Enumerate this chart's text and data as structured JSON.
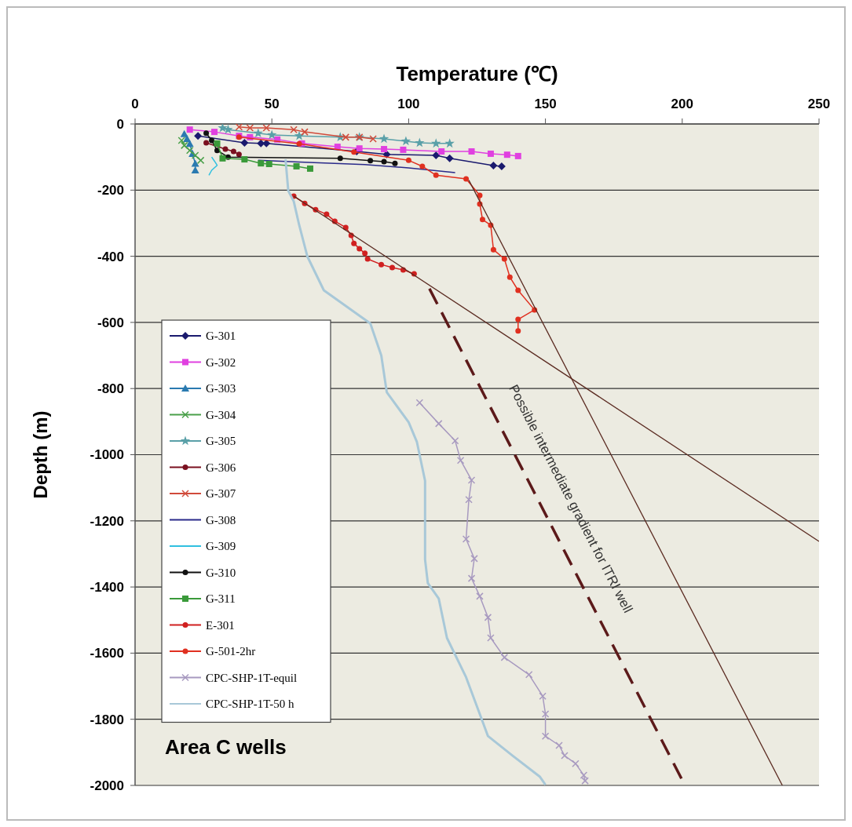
{
  "chart_data": {
    "type": "line",
    "title": "Temperature (℃)",
    "ylabel": "Depth (m)",
    "xlim": [
      0,
      250
    ],
    "xticks": [
      0,
      50,
      100,
      150,
      200,
      250
    ],
    "ylim": [
      -2000,
      0
    ],
    "yticks": [
      -2000,
      -1800,
      -1600,
      -1400,
      -1200,
      -1000,
      -800,
      -600,
      -400,
      -200,
      0
    ],
    "grid": "y",
    "legend": "left",
    "annotations": [
      "Area C wells",
      "Possible intermediate gradient for ITRI well"
    ],
    "series": [
      {
        "name": "G-301",
        "color": "#1a1a6e",
        "marker": "diamond",
        "x": [
          23,
          40,
          46,
          48,
          81,
          92,
          110,
          115,
          131,
          134
        ],
        "values": [
          -36,
          -57,
          -59,
          -59,
          -83,
          -92,
          -95,
          -104,
          -126,
          -128
        ]
      },
      {
        "name": "G-302",
        "color": "#e040e0",
        "marker": "square",
        "x": [
          20,
          29,
          38,
          42,
          52,
          61,
          74,
          82,
          91,
          98,
          112,
          123,
          130,
          136,
          140
        ],
        "values": [
          -17,
          -24,
          -36,
          -40,
          -47,
          -59,
          -69,
          -74,
          -76,
          -78,
          -83,
          -83,
          -90,
          -93,
          -97
        ]
      },
      {
        "name": "G-303",
        "color": "#2a7ab0",
        "marker": "triangle",
        "x": [
          18,
          19,
          20,
          21,
          22,
          22
        ],
        "values": [
          -30,
          -45,
          -60,
          -90,
          -120,
          -140
        ]
      },
      {
        "name": "G-304",
        "color": "#4aa04a",
        "marker": "cross",
        "x": [
          17,
          18,
          20,
          22,
          24
        ],
        "values": [
          -50,
          -65,
          -80,
          -95,
          -110
        ]
      },
      {
        "name": "G-305",
        "color": "#5aa0a8",
        "marker": "star",
        "x": [
          32,
          34,
          45,
          50,
          60,
          75,
          82,
          91,
          99,
          104,
          110,
          115
        ],
        "values": [
          -12,
          -17,
          -28,
          -33,
          -36,
          -40,
          -40,
          -45,
          -52,
          -57,
          -59,
          -59
        ]
      },
      {
        "name": "G-306",
        "color": "#7a1020",
        "marker": "circle",
        "x": [
          26,
          33,
          36,
          38
        ],
        "values": [
          -57,
          -76,
          -83,
          -92
        ]
      },
      {
        "name": "G-307",
        "color": "#d04a3a",
        "marker": "cross",
        "x": [
          38,
          42,
          48,
          58,
          62,
          77,
          82,
          87
        ],
        "values": [
          -9,
          -12,
          -12,
          -17,
          -24,
          -40,
          -40,
          -45
        ]
      },
      {
        "name": "G-308",
        "color": "#2a2a8a",
        "marker": "none",
        "x": [
          45,
          60,
          84,
          100,
          117
        ],
        "values": [
          -110,
          -115,
          -123,
          -133,
          -147
        ]
      },
      {
        "name": "G-309",
        "color": "#30c0e0",
        "marker": "none",
        "x": [
          28,
          29,
          30,
          28,
          27
        ],
        "values": [
          -100,
          -112,
          -125,
          -140,
          -155
        ]
      },
      {
        "name": "G-310",
        "color": "#111111",
        "marker": "circle",
        "x": [
          26,
          28,
          30,
          34,
          75,
          86,
          91,
          95
        ],
        "values": [
          -28,
          -50,
          -80,
          -100,
          -104,
          -111,
          -114,
          -119
        ]
      },
      {
        "name": "G-311",
        "color": "#3a9a3a",
        "marker": "square",
        "x": [
          30,
          32,
          40,
          46,
          49,
          59,
          64
        ],
        "values": [
          -59,
          -104,
          -107,
          -119,
          -121,
          -128,
          -135
        ]
      },
      {
        "name": "E-301",
        "color": "#d02020",
        "marker": "circle",
        "x": [
          58,
          62,
          66,
          70,
          73,
          77,
          79,
          80,
          82,
          84,
          85,
          90,
          94,
          98,
          102
        ],
        "values": [
          -218,
          -240,
          -259,
          -273,
          -294,
          -313,
          -337,
          -361,
          -377,
          -391,
          -408,
          -425,
          -434,
          -441,
          -453
        ]
      },
      {
        "name": "G-501-2hr",
        "color": "#e03020",
        "marker": "circle",
        "x": [
          38,
          60,
          80,
          100,
          105,
          110,
          121,
          126,
          126,
          127,
          130,
          131,
          135,
          137,
          140,
          146,
          140,
          140
        ],
        "values": [
          -40,
          -60,
          -85,
          -110,
          -128,
          -155,
          -166,
          -216,
          -242,
          -289,
          -306,
          -380,
          -408,
          -463,
          -503,
          -562,
          -591,
          -626
        ]
      },
      {
        "name": "CPC-SHP-1T-equil",
        "color": "#a89ac0",
        "marker": "cross",
        "x": [
          104,
          111,
          117,
          119,
          123,
          122,
          121,
          124,
          123,
          126,
          129,
          130,
          135,
          144,
          149,
          150,
          150,
          155,
          157,
          161,
          164,
          164.5
        ],
        "values": [
          -843,
          -906,
          -958,
          -1017,
          -1077,
          -1136,
          -1255,
          -1314,
          -1374,
          -1428,
          -1492,
          -1554,
          -1613,
          -1665,
          -1730,
          -1784,
          -1851,
          -1879,
          -1910,
          -1934,
          -1969,
          -1986
        ]
      },
      {
        "name": "CPC-SHP-1T-50 h",
        "color": "#a8c8d8",
        "marker": "none",
        "x": [
          55,
          56,
          58,
          60,
          63,
          69,
          86,
          90,
          92,
          100,
          103,
          106,
          106,
          106,
          107,
          111,
          114,
          121,
          126,
          129,
          138,
          148,
          150
        ],
        "values": [
          -107,
          -202,
          -234,
          -306,
          -401,
          -503,
          -603,
          -700,
          -811,
          -902,
          -961,
          -1079,
          -1198,
          -1317,
          -1388,
          -1435,
          -1554,
          -1673,
          -1784,
          -1851,
          -1910,
          -1974,
          -1998
        ]
      },
      {
        "color": "#5a2a20",
        "marker": "none",
        "x": [
          122,
          236.6
        ],
        "values": [
          -170,
          -2000
        ]
      },
      {
        "color": "#5a2a20",
        "marker": "none",
        "x": [
          58,
          250
        ],
        "values": [
          -218,
          -1262
        ]
      },
      {
        "color": "#5c1a1a",
        "marker": "none",
        "line_style": "dashed",
        "x": [
          107.6,
          201
        ],
        "values": [
          -498,
          -2000
        ]
      }
    ]
  }
}
